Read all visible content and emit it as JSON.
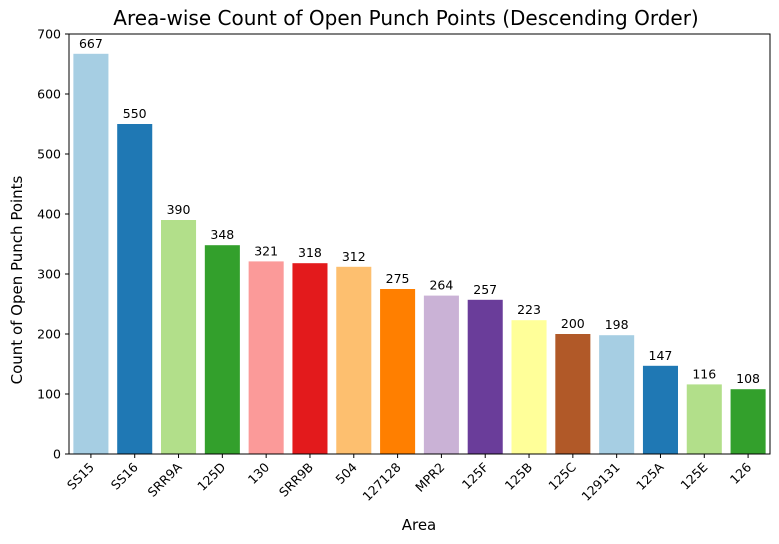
{
  "chart_data": {
    "type": "bar",
    "title": "Area-wise Count of Open Punch Points (Descending Order)",
    "xlabel": "Area",
    "ylabel": "Count of Open Punch Points",
    "categories": [
      "SS15",
      "SS16",
      "SRR9A",
      "125D",
      "130",
      "SRR9B",
      "504",
      "127128",
      "MPR2",
      "125F",
      "125B",
      "125C",
      "129131",
      "125A",
      "125E",
      "126"
    ],
    "values": [
      667,
      550,
      390,
      348,
      321,
      318,
      312,
      275,
      264,
      257,
      223,
      200,
      198,
      147,
      116,
      108
    ],
    "data_labels": [
      "667",
      "550",
      "390",
      "348",
      "321",
      "318",
      "312",
      "275",
      "264",
      "257",
      "223",
      "200",
      "198",
      "147",
      "116",
      "108"
    ],
    "colors": [
      "#a6cee3",
      "#1f78b4",
      "#b2df8a",
      "#33a02c",
      "#fb9a99",
      "#e31a1c",
      "#fdbf6f",
      "#ff7f00",
      "#cab2d6",
      "#6a3d9a",
      "#ffff99",
      "#b15928",
      "#a6cee3",
      "#1f78b4",
      "#b2df8a",
      "#33a02c"
    ],
    "ylim": [
      0,
      700
    ],
    "yticks": [
      "0",
      "100",
      "200",
      "300",
      "400",
      "500",
      "600",
      "700"
    ],
    "ytick_values": [
      0,
      100,
      200,
      300,
      400,
      500,
      600,
      700
    ],
    "grid": false,
    "legend": "none"
  }
}
